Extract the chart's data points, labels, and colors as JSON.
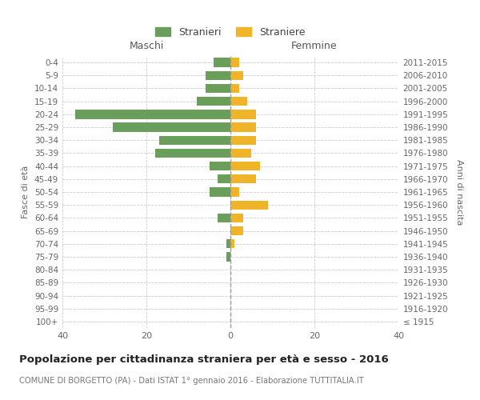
{
  "age_groups": [
    "100+",
    "95-99",
    "90-94",
    "85-89",
    "80-84",
    "75-79",
    "70-74",
    "65-69",
    "60-64",
    "55-59",
    "50-54",
    "45-49",
    "40-44",
    "35-39",
    "30-34",
    "25-29",
    "20-24",
    "15-19",
    "10-14",
    "5-9",
    "0-4"
  ],
  "birth_years": [
    "≤ 1915",
    "1916-1920",
    "1921-1925",
    "1926-1930",
    "1931-1935",
    "1936-1940",
    "1941-1945",
    "1946-1950",
    "1951-1955",
    "1956-1960",
    "1961-1965",
    "1966-1970",
    "1971-1975",
    "1976-1980",
    "1981-1985",
    "1986-1990",
    "1991-1995",
    "1996-2000",
    "2001-2005",
    "2006-2010",
    "2011-2015"
  ],
  "maschi": [
    0,
    0,
    0,
    0,
    0,
    1,
    1,
    0,
    3,
    0,
    5,
    3,
    5,
    18,
    17,
    28,
    37,
    8,
    6,
    6,
    4
  ],
  "femmine": [
    0,
    0,
    0,
    0,
    0,
    0,
    1,
    3,
    3,
    9,
    2,
    6,
    7,
    5,
    6,
    6,
    6,
    4,
    2,
    3,
    2
  ],
  "color_maschi": "#6a9e5b",
  "color_femmine": "#f0b429",
  "title": "Popolazione per cittadinanza straniera per età e sesso - 2016",
  "subtitle": "COMUNE DI BORGETTO (PA) - Dati ISTAT 1° gennaio 2016 - Elaborazione TUTTITALIA.IT",
  "ylabel_left": "Fasce di età",
  "ylabel_right": "Anni di nascita",
  "header_maschi": "Maschi",
  "header_femmine": "Femmine",
  "legend_maschi": "Stranieri",
  "legend_femmine": "Straniere",
  "xlim": 40,
  "background_color": "#ffffff",
  "grid_color": "#cccccc",
  "label_color": "#666666"
}
